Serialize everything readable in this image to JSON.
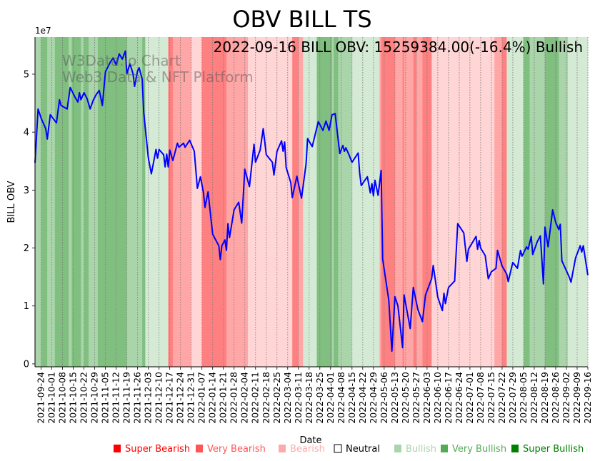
{
  "chart_data": {
    "type": "line",
    "title": "OBV BILL TS",
    "annotation": "2022-09-16 BILL OBV: 15259384.00(-16.4%) Bullish",
    "watermark": [
      "W3Data.io Chart",
      "Web3 Data & NFT Platform"
    ],
    "xlabel": "Date",
    "ylabel": "BILL OBV",
    "y_multiplier_label": "1e7",
    "ylim": [
      -0.05,
      5.64
    ],
    "yticks": [
      0,
      1,
      2,
      3,
      4,
      5
    ],
    "ytick_labels": [
      "0",
      "1",
      "2",
      "3",
      "4",
      "5"
    ],
    "start_date": "2021-09-20",
    "end_day": 361,
    "xtick_labels": [
      "2021-09-24",
      "2021-10-01",
      "2021-10-08",
      "2021-10-15",
      "2021-10-22",
      "2021-10-29",
      "2021-11-05",
      "2021-11-12",
      "2021-11-19",
      "2021-11-26",
      "2021-12-03",
      "2021-12-10",
      "2021-12-17",
      "2021-12-24",
      "2021-12-31",
      "2022-01-07",
      "2022-01-14",
      "2022-01-21",
      "2022-01-28",
      "2022-02-04",
      "2022-02-11",
      "2022-02-18",
      "2022-02-25",
      "2022-03-04",
      "2022-03-11",
      "2022-03-18",
      "2022-03-25",
      "2022-04-01",
      "2022-04-08",
      "2022-04-15",
      "2022-04-22",
      "2022-04-29",
      "2022-05-06",
      "2022-05-13",
      "2022-05-20",
      "2022-05-27",
      "2022-06-03",
      "2022-06-10",
      "2022-06-17",
      "2022-06-24",
      "2022-07-01",
      "2022-07-08",
      "2022-07-15",
      "2022-07-22",
      "2022-07-29",
      "2022-08-05",
      "2022-08-12",
      "2022-08-19",
      "2022-08-26",
      "2022-09-02",
      "2022-09-09",
      "2022-09-16"
    ],
    "series": [
      {
        "name": "BILL OBV",
        "color": "#0000ff",
        "points_day_value": [
          [
            0,
            3.47
          ],
          [
            2,
            4.4
          ],
          [
            4,
            4.24
          ],
          [
            7,
            4.06
          ],
          [
            8,
            3.88
          ],
          [
            10,
            4.3
          ],
          [
            14,
            4.16
          ],
          [
            16,
            4.56
          ],
          [
            17,
            4.46
          ],
          [
            21,
            4.4
          ],
          [
            23,
            4.77
          ],
          [
            26,
            4.61
          ],
          [
            28,
            4.52
          ],
          [
            29,
            4.68
          ],
          [
            30,
            4.56
          ],
          [
            32,
            4.68
          ],
          [
            34,
            4.58
          ],
          [
            36,
            4.4
          ],
          [
            38,
            4.55
          ],
          [
            40,
            4.65
          ],
          [
            42,
            4.72
          ],
          [
            44,
            4.46
          ],
          [
            46,
            5.04
          ],
          [
            49,
            5.2
          ],
          [
            51,
            5.28
          ],
          [
            53,
            5.16
          ],
          [
            55,
            5.35
          ],
          [
            57,
            5.26
          ],
          [
            59,
            5.4
          ],
          [
            60,
            5.01
          ],
          [
            62,
            5.18
          ],
          [
            64,
            5.01
          ],
          [
            65,
            4.79
          ],
          [
            67,
            5.06
          ],
          [
            68,
            5.11
          ],
          [
            70,
            4.91
          ],
          [
            71,
            4.34
          ],
          [
            74,
            3.55
          ],
          [
            76,
            3.28
          ],
          [
            79,
            3.7
          ],
          [
            80,
            3.55
          ],
          [
            81,
            3.7
          ],
          [
            84,
            3.61
          ],
          [
            85,
            3.4
          ],
          [
            86,
            3.62
          ],
          [
            87,
            3.4
          ],
          [
            88,
            3.69
          ],
          [
            90,
            3.51
          ],
          [
            93,
            3.81
          ],
          [
            94,
            3.74
          ],
          [
            97,
            3.81
          ],
          [
            98,
            3.74
          ],
          [
            101,
            3.86
          ],
          [
            104,
            3.67
          ],
          [
            106,
            3.03
          ],
          [
            108,
            3.23
          ],
          [
            110,
            2.96
          ],
          [
            111,
            2.7
          ],
          [
            113,
            2.97
          ],
          [
            116,
            2.24
          ],
          [
            120,
            2.04
          ],
          [
            121,
            1.8
          ],
          [
            122,
            2.04
          ],
          [
            124,
            2.14
          ],
          [
            125,
            1.96
          ],
          [
            126,
            2.42
          ],
          [
            127,
            2.18
          ],
          [
            130,
            2.66
          ],
          [
            133,
            2.79
          ],
          [
            135,
            2.43
          ],
          [
            137,
            3.36
          ],
          [
            140,
            3.06
          ],
          [
            143,
            3.79
          ],
          [
            144,
            3.48
          ],
          [
            147,
            3.69
          ],
          [
            149,
            4.06
          ],
          [
            151,
            3.61
          ],
          [
            155,
            3.48
          ],
          [
            156,
            3.26
          ],
          [
            158,
            3.67
          ],
          [
            161,
            3.85
          ],
          [
            162,
            3.67
          ],
          [
            163,
            3.83
          ],
          [
            164,
            3.39
          ],
          [
            167,
            3.13
          ],
          [
            168,
            2.87
          ],
          [
            171,
            3.24
          ],
          [
            174,
            2.86
          ],
          [
            177,
            3.45
          ],
          [
            178,
            3.89
          ],
          [
            181,
            3.75
          ],
          [
            185,
            4.18
          ],
          [
            188,
            4.03
          ],
          [
            190,
            4.19
          ],
          [
            192,
            4.03
          ],
          [
            194,
            4.3
          ],
          [
            196,
            4.32
          ],
          [
            199,
            3.63
          ],
          [
            201,
            3.77
          ],
          [
            202,
            3.67
          ],
          [
            203,
            3.73
          ],
          [
            205,
            3.61
          ],
          [
            207,
            3.48
          ],
          [
            211,
            3.64
          ],
          [
            212,
            3.3
          ],
          [
            213,
            3.08
          ],
          [
            217,
            3.23
          ],
          [
            219,
            2.95
          ],
          [
            220,
            3.11
          ],
          [
            221,
            2.9
          ],
          [
            222,
            3.17
          ],
          [
            224,
            2.91
          ],
          [
            226,
            3.34
          ],
          [
            227,
            1.81
          ],
          [
            231,
            1.1
          ],
          [
            233,
            0.22
          ],
          [
            235,
            1.16
          ],
          [
            237,
            1.0
          ],
          [
            240,
            0.28
          ],
          [
            241,
            1.19
          ],
          [
            245,
            0.61
          ],
          [
            247,
            1.32
          ],
          [
            250,
            0.94
          ],
          [
            253,
            0.73
          ],
          [
            255,
            1.19
          ],
          [
            259,
            1.47
          ],
          [
            260,
            1.7
          ],
          [
            263,
            1.15
          ],
          [
            266,
            0.92
          ],
          [
            267,
            1.22
          ],
          [
            268,
            1.04
          ],
          [
            270,
            1.32
          ],
          [
            274,
            1.43
          ],
          [
            276,
            2.42
          ],
          [
            280,
            2.26
          ],
          [
            282,
            1.77
          ],
          [
            283,
            1.98
          ],
          [
            288,
            2.2
          ],
          [
            289,
            1.98
          ],
          [
            290,
            2.13
          ],
          [
            291,
            2.0
          ],
          [
            294,
            1.87
          ],
          [
            296,
            1.47
          ],
          [
            298,
            1.59
          ],
          [
            301,
            1.65
          ],
          [
            302,
            1.96
          ],
          [
            305,
            1.69
          ],
          [
            308,
            1.55
          ],
          [
            309,
            1.42
          ],
          [
            312,
            1.75
          ],
          [
            315,
            1.65
          ],
          [
            317,
            1.96
          ],
          [
            318,
            1.86
          ],
          [
            321,
            2.02
          ],
          [
            322,
            1.98
          ],
          [
            324,
            2.2
          ],
          [
            325,
            1.89
          ],
          [
            328,
            2.11
          ],
          [
            330,
            2.21
          ],
          [
            332,
            1.38
          ],
          [
            333,
            2.36
          ],
          [
            335,
            2.02
          ],
          [
            338,
            2.66
          ],
          [
            340,
            2.44
          ],
          [
            342,
            2.32
          ],
          [
            343,
            2.41
          ],
          [
            344,
            1.78
          ],
          [
            349,
            1.49
          ],
          [
            350,
            1.41
          ],
          [
            353,
            1.83
          ],
          [
            356,
            2.04
          ],
          [
            357,
            1.93
          ],
          [
            358,
            2.04
          ],
          [
            361,
            1.53
          ]
        ]
      }
    ],
    "band_colors": {
      "very_bearish": "#ff8080",
      "bearish": "#ffa6a6",
      "mild_bearish": "#ffd5d5",
      "mild_bullish": "#d4ead4",
      "bullish": "#aad4aa",
      "very_bullish": "#80bf80"
    },
    "bands_day_range": [
      [
        0,
        4,
        "bullish"
      ],
      [
        4,
        8,
        "very_bullish"
      ],
      [
        8,
        13,
        "bullish"
      ],
      [
        13,
        22,
        "very_bullish"
      ],
      [
        22,
        24,
        "bullish"
      ],
      [
        24,
        30,
        "very_bullish"
      ],
      [
        30,
        32,
        "bullish"
      ],
      [
        32,
        35,
        "very_bullish"
      ],
      [
        35,
        41,
        "bullish"
      ],
      [
        41,
        60,
        "very_bullish"
      ],
      [
        60,
        70,
        "bullish"
      ],
      [
        70,
        72,
        "very_bullish"
      ],
      [
        72,
        87,
        "mild_bullish"
      ],
      [
        87,
        90,
        "very_bearish"
      ],
      [
        90,
        102,
        "bearish"
      ],
      [
        102,
        109,
        "mild_bearish"
      ],
      [
        109,
        125,
        "very_bearish"
      ],
      [
        125,
        139,
        "bearish"
      ],
      [
        139,
        168,
        "mild_bearish"
      ],
      [
        168,
        172,
        "very_bearish"
      ],
      [
        172,
        175,
        "bearish"
      ],
      [
        175,
        184,
        "mild_bullish"
      ],
      [
        184,
        194,
        "very_bullish"
      ],
      [
        194,
        195,
        "bullish"
      ],
      [
        195,
        198,
        "very_bullish"
      ],
      [
        198,
        207,
        "bullish"
      ],
      [
        207,
        225,
        "mild_bullish"
      ],
      [
        225,
        226,
        "bearish"
      ],
      [
        226,
        235,
        "very_bearish"
      ],
      [
        235,
        240,
        "bearish"
      ],
      [
        240,
        241,
        "very_bearish"
      ],
      [
        241,
        247,
        "bearish"
      ],
      [
        247,
        249,
        "very_bearish"
      ],
      [
        249,
        253,
        "bearish"
      ],
      [
        253,
        259,
        "very_bearish"
      ],
      [
        259,
        300,
        "mild_bearish"
      ],
      [
        300,
        305,
        "bearish"
      ],
      [
        305,
        308,
        "very_bearish"
      ],
      [
        308,
        319,
        "mild_bullish"
      ],
      [
        319,
        323,
        "very_bullish"
      ],
      [
        323,
        333,
        "bullish"
      ],
      [
        333,
        342,
        "very_bullish"
      ],
      [
        342,
        348,
        "bullish"
      ],
      [
        348,
        361,
        "mild_bullish"
      ]
    ],
    "legend": {
      "placement": "bottom",
      "entries": [
        {
          "label": "Super Bearish",
          "color": "#ff0000",
          "text_color": "#ff0000",
          "filled": true
        },
        {
          "label": "Very Bearish",
          "color": "#ff5555",
          "text_color": "#ff5555",
          "filled": true
        },
        {
          "label": "Bearish",
          "color": "#ffaaaa",
          "text_color": "#ffaaaa",
          "filled": true
        },
        {
          "label": "Neutral",
          "color": "#000000",
          "text_color": "#000000",
          "filled": false
        },
        {
          "label": "Bullish",
          "color": "#aad4aa",
          "text_color": "#aad4aa",
          "filled": true
        },
        {
          "label": "Very Bullish",
          "color": "#55aa55",
          "text_color": "#55aa55",
          "filled": true
        },
        {
          "label": "Super Bullish",
          "color": "#008000",
          "text_color": "#008000",
          "filled": true
        }
      ]
    }
  }
}
